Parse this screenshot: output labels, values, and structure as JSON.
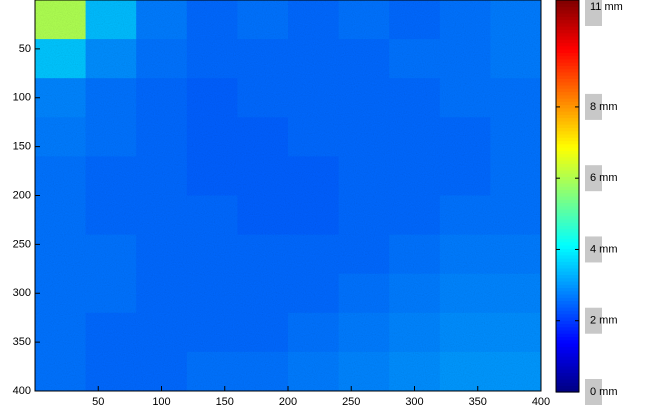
{
  "chart_data": {
    "type": "heatmap",
    "colormap": "jet",
    "values": [
      [
        6.0,
        3.4,
        2.7,
        2.5,
        2.6,
        2.5,
        2.6,
        2.5,
        2.6,
        2.7
      ],
      [
        3.5,
        2.9,
        2.6,
        2.5,
        2.5,
        2.5,
        2.5,
        2.6,
        2.6,
        2.7
      ],
      [
        2.8,
        2.6,
        2.5,
        2.4,
        2.5,
        2.5,
        2.5,
        2.5,
        2.6,
        2.6
      ],
      [
        2.7,
        2.6,
        2.5,
        2.4,
        2.4,
        2.5,
        2.5,
        2.5,
        2.5,
        2.6
      ],
      [
        2.6,
        2.5,
        2.5,
        2.4,
        2.4,
        2.4,
        2.5,
        2.5,
        2.5,
        2.6
      ],
      [
        2.6,
        2.5,
        2.5,
        2.5,
        2.4,
        2.4,
        2.5,
        2.5,
        2.6,
        2.6
      ],
      [
        2.6,
        2.6,
        2.5,
        2.5,
        2.5,
        2.5,
        2.5,
        2.6,
        2.7,
        2.7
      ],
      [
        2.6,
        2.6,
        2.5,
        2.5,
        2.5,
        2.5,
        2.6,
        2.7,
        2.8,
        2.8
      ],
      [
        2.6,
        2.5,
        2.5,
        2.5,
        2.5,
        2.6,
        2.7,
        2.8,
        2.9,
        2.9
      ],
      [
        2.6,
        2.5,
        2.5,
        2.6,
        2.6,
        2.7,
        2.8,
        2.9,
        3.0,
        3.0
      ]
    ],
    "xlim": [
      0,
      400
    ],
    "ylim": [
      0,
      400
    ],
    "y_reversed": true,
    "xticks": [
      50,
      100,
      150,
      200,
      250,
      300,
      350,
      400
    ],
    "yticks": [
      50,
      100,
      150,
      200,
      250,
      300,
      350,
      400
    ],
    "clim": [
      0,
      11
    ],
    "colorbar_ticks": [
      {
        "value": 0,
        "label": "0 mm"
      },
      {
        "value": 2,
        "label": "2 mm"
      },
      {
        "value": 4,
        "label": "4 mm"
      },
      {
        "value": 6,
        "label": "6 mm"
      },
      {
        "value": 8,
        "label": "8 mm"
      },
      {
        "value": 11,
        "label": "11 mm"
      }
    ]
  }
}
